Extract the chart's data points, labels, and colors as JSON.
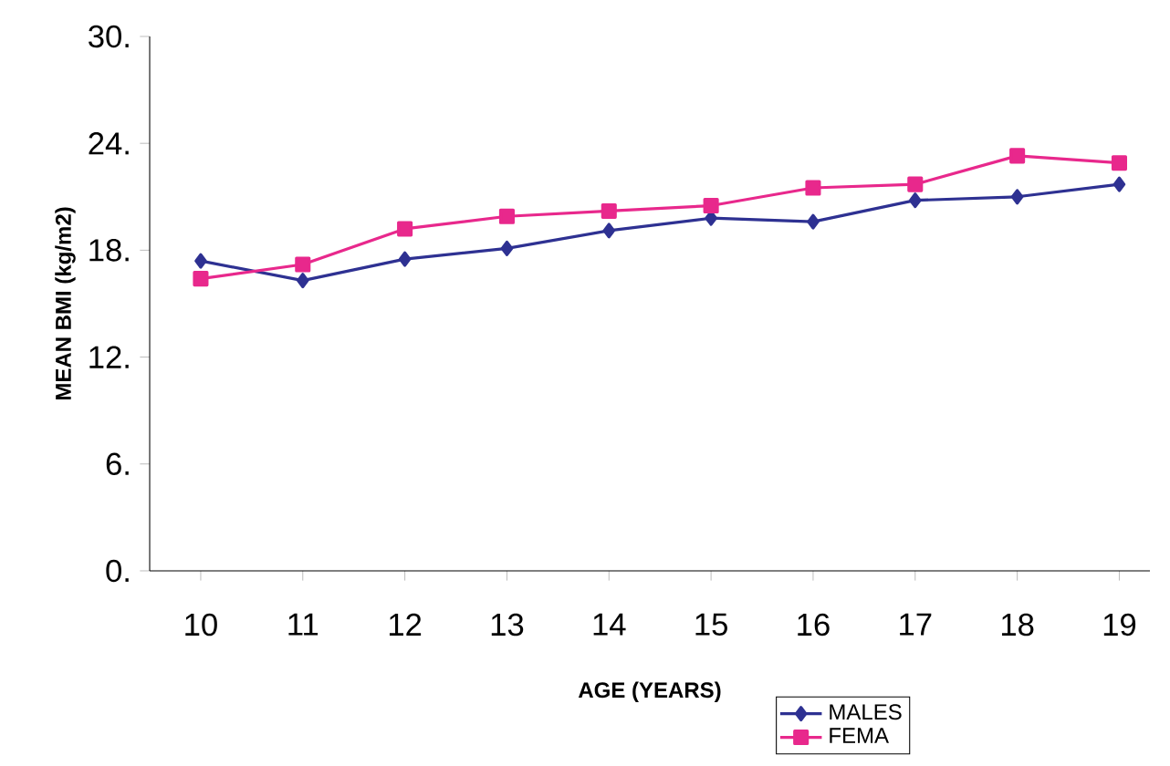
{
  "chart_data": {
    "type": "line",
    "xlabel": "AGE (YEARS)",
    "ylabel": "MEAN BMI (kg/m2)",
    "categories": [
      "10",
      "11",
      "12",
      "13",
      "14",
      "15",
      "16",
      "17",
      "18",
      "19"
    ],
    "series": [
      {
        "name": "MALES",
        "color": "#2e3192",
        "marker": "diamond",
        "values": [
          17.4,
          16.3,
          17.5,
          18.1,
          19.1,
          19.8,
          19.6,
          20.8,
          21.0,
          21.7
        ]
      },
      {
        "name": "FEMA",
        "color": "#e8288c",
        "marker": "square",
        "values": [
          16.4,
          17.2,
          19.2,
          19.9,
          20.2,
          20.5,
          21.5,
          21.7,
          23.3,
          22.9
        ]
      }
    ],
    "ylim": [
      0,
      30
    ],
    "yticks": [
      {
        "value": 0,
        "label": "0."
      },
      {
        "value": 6,
        "label": "6."
      },
      {
        "value": 12,
        "label": "12."
      },
      {
        "value": 18,
        "label": "18."
      },
      {
        "value": 24,
        "label": "24."
      },
      {
        "value": 30,
        "label": "30."
      }
    ],
    "grid": false,
    "legend": "bottom right"
  }
}
